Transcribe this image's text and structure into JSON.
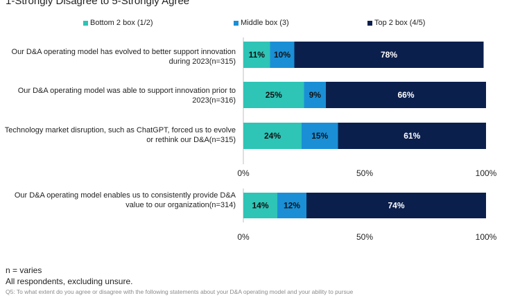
{
  "subtitle": "1-Strongly Disagree to 5-Strongly Agree",
  "legend": [
    {
      "label": "Bottom 2 box (1/2)",
      "color": "#2ec4b6"
    },
    {
      "label": "Middle box (3)",
      "color": "#1a8fd6"
    },
    {
      "label": "Top 2 box (4/5)",
      "color": "#0b1f4d"
    }
  ],
  "chart_data": [
    {
      "type": "bar",
      "orientation": "horizontal",
      "stacked": true,
      "categories": [
        "Our D&A operating model has evolved to better support innovation during 2023(n=315)",
        "Our D&A operating model was able to support innovation prior to 2023(n=316)",
        "Technology market disruption, such as ChatGPT, forced us to evolve or rethink our D&A(n=315)"
      ],
      "series": [
        {
          "name": "Bottom 2 box (1/2)",
          "values": [
            11,
            25,
            24
          ]
        },
        {
          "name": "Middle box (3)",
          "values": [
            10,
            9,
            15
          ]
        },
        {
          "name": "Top 2 box (4/5)",
          "values": [
            78,
            66,
            61
          ]
        }
      ],
      "xlim": [
        0,
        100
      ],
      "xticks": [
        "0%",
        "50%",
        "100%"
      ]
    },
    {
      "type": "bar",
      "orientation": "horizontal",
      "stacked": true,
      "categories": [
        "Our D&A operating model enables us to consistently provide D&A value to our organization(n=314)"
      ],
      "series": [
        {
          "name": "Bottom 2 box (1/2)",
          "values": [
            14
          ]
        },
        {
          "name": "Middle box (3)",
          "values": [
            12
          ]
        },
        {
          "name": "Top 2 box (4/5)",
          "values": [
            74
          ]
        }
      ],
      "xlim": [
        0,
        100
      ],
      "xticks": [
        "0%",
        "50%",
        "100%"
      ]
    }
  ],
  "footer": {
    "n": "n = varies",
    "note": "All respondents, excluding unsure.",
    "question": "Q5: To what extent do you agree or disagree with the following statements about your D&A operating model and your ability to pursue"
  }
}
